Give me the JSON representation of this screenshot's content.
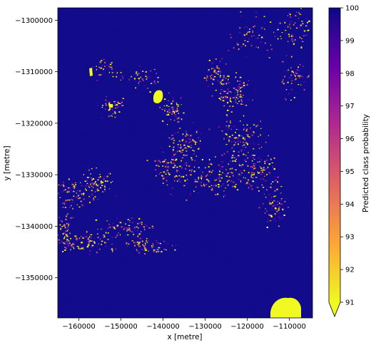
{
  "chart_data": {
    "type": "heatmap",
    "title": "",
    "xlabel": "x [metre]",
    "ylabel": "y [metre]",
    "xlim": [
      -165000,
      -104500
    ],
    "ylim": [
      -1357800,
      -1297600
    ],
    "x_ticks": [
      -160000,
      -150000,
      -140000,
      -130000,
      -120000,
      -110000
    ],
    "x_tick_labels": [
      "−160000",
      "−150000",
      "−140000",
      "−130000",
      "−120000",
      "−110000"
    ],
    "y_ticks": [
      -1300000,
      -1310000,
      -1320000,
      -1330000,
      -1340000,
      -1350000
    ],
    "y_tick_labels": [
      "−1300000",
      "−1310000",
      "−1320000",
      "−1330000",
      "−1340000",
      "−1350000"
    ],
    "grid": false,
    "colormap": "plasma",
    "background_value": 100,
    "colorbar": {
      "label": "Predicted class probability",
      "vmin": 91,
      "vmax": 100,
      "extend": "min",
      "ticks": [
        91,
        92,
        93,
        94,
        95,
        96,
        97,
        98,
        99,
        100
      ],
      "tick_labels": [
        "91",
        "92",
        "93",
        "94",
        "95",
        "96",
        "97",
        "98",
        "99",
        "100"
      ],
      "stops": [
        "#f0f921",
        "#fca636",
        "#e16462",
        "#b12a90",
        "#6a00a8",
        "#0d0887"
      ]
    }
  }
}
